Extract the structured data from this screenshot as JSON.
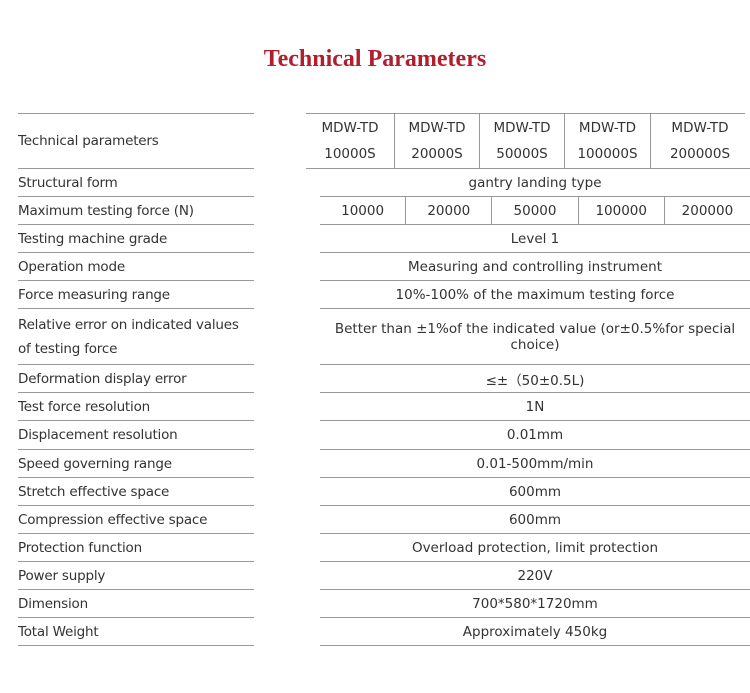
{
  "title": "Technical Parameters",
  "header": {
    "label": "Technical parameters",
    "models": [
      "MDW-TD 10000S",
      "MDW-TD 20000S",
      "MDW-TD 50000S",
      "MDW-TD 100000S",
      "MDW-TD 200000S"
    ]
  },
  "rows": [
    {
      "label": "Structural form",
      "value": "gantry landing type"
    },
    {
      "label": "Maximum testing force (N)",
      "values": [
        "10000",
        "20000",
        "50000",
        "100000",
        "200000"
      ]
    },
    {
      "label": "Testing machine grade",
      "value": "Level 1"
    },
    {
      "label": "Operation mode",
      "value": "Measuring and controlling instrument"
    },
    {
      "label": "Force measuring range",
      "value": "10%-100% of the maximum testing force"
    },
    {
      "label": "Relative error on indicated values of testing force",
      "value": "Better than ±1%of the indicated value (or±0.5%for special choice)"
    },
    {
      "label": "Deformation display error",
      "value": "≤±（50±0.5L)"
    },
    {
      "label": "Test force resolution",
      "value": "1N"
    },
    {
      "label": "Displacement resolution",
      "value": "0.01mm"
    },
    {
      "label": "Speed governing range",
      "value": "0.01-500mm/min"
    },
    {
      "label": "Stretch effective space",
      "value": "600mm"
    },
    {
      "label": "Compression effective space",
      "value": "600mm"
    },
    {
      "label": "Protection function",
      "value": "Overload protection, limit protection"
    },
    {
      "label": "Power supply",
      "value": "220V"
    },
    {
      "label": "Dimension",
      "value": "700*580*1720mm"
    },
    {
      "label": "Total Weight",
      "value": "Approximately 450kg"
    }
  ]
}
